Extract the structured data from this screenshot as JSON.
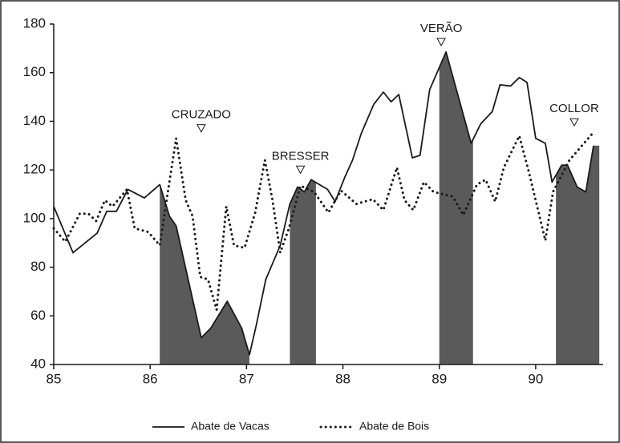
{
  "chart_data": {
    "type": "line",
    "xlim": [
      85,
      90.7
    ],
    "ylim": [
      40,
      180
    ],
    "xticks": [
      85,
      86,
      87,
      88,
      89,
      90
    ],
    "yticks": [
      40,
      60,
      80,
      100,
      120,
      140,
      160,
      180
    ],
    "shaded_periods": [
      [
        86.1,
        87.03
      ],
      [
        87.45,
        87.72
      ],
      [
        89.0,
        89.35
      ],
      [
        90.21,
        90.66
      ]
    ],
    "shade_color": "#5a5a5a",
    "annotations": [
      {
        "label": "CRUZADO",
        "x": 86.53
      },
      {
        "label": "BRESSER",
        "x": 87.56
      },
      {
        "label": "VERÃO",
        "x": 89.02
      },
      {
        "label": "COLLOR",
        "x": 90.4
      }
    ],
    "series": [
      {
        "name": "Abate de Vacas",
        "color": "#1a1a1a",
        "dash": "solid",
        "x": [
          85.0,
          85.2,
          85.45,
          85.55,
          85.65,
          85.77,
          85.94,
          86.1,
          86.2,
          86.27,
          86.53,
          86.63,
          86.8,
          86.95,
          87.03,
          87.1,
          87.2,
          87.35,
          87.45,
          87.53,
          87.6,
          87.67,
          87.84,
          87.92,
          88.02,
          88.1,
          88.19,
          88.32,
          88.42,
          88.5,
          88.58,
          88.72,
          88.8,
          88.9,
          89.07,
          89.33,
          89.43,
          89.55,
          89.63,
          89.74,
          89.83,
          89.91,
          90.0,
          90.1,
          90.17,
          90.27,
          90.33,
          90.43,
          90.52,
          90.6
        ],
        "values": [
          105,
          86,
          94,
          103,
          103,
          112,
          108.5,
          114,
          101,
          97,
          51,
          55,
          66,
          55,
          44,
          56,
          75,
          89,
          106,
          113,
          111,
          116,
          112,
          107,
          117,
          124,
          135,
          147,
          152,
          148,
          151,
          125,
          126,
          153,
          168.5,
          131,
          139,
          144,
          155,
          154.5,
          158,
          156,
          133,
          131,
          115,
          122,
          122,
          113,
          111,
          130
        ]
      },
      {
        "name": "Abate de Bois",
        "color": "#1a1a1a",
        "dash": "dotted",
        "x": [
          85.0,
          85.12,
          85.27,
          85.36,
          85.44,
          85.53,
          85.61,
          85.76,
          85.84,
          85.98,
          86.1,
          86.19,
          86.27,
          86.37,
          86.44,
          86.52,
          86.6,
          86.69,
          86.79,
          86.87,
          86.98,
          87.09,
          87.19,
          87.27,
          87.35,
          87.44,
          87.56,
          87.7,
          87.85,
          87.98,
          88.14,
          88.31,
          88.42,
          88.56,
          88.64,
          88.73,
          88.84,
          88.94,
          89.14,
          89.25,
          89.39,
          89.48,
          89.58,
          89.67,
          89.83,
          89.93,
          90.1,
          90.18,
          90.35,
          90.6
        ],
        "values": [
          96,
          90.5,
          102,
          102,
          99,
          107.5,
          105,
          112,
          96,
          94.5,
          89,
          112.5,
          133,
          107.5,
          101,
          76,
          75,
          62.5,
          105,
          89,
          88,
          102.5,
          124,
          107.5,
          86,
          96,
          113.5,
          111,
          102.5,
          111.5,
          106,
          108,
          103.5,
          121,
          107.5,
          103.5,
          115,
          111,
          109,
          101.5,
          114,
          116,
          107,
          121,
          134,
          119,
          91,
          111,
          124,
          135.5
        ]
      }
    ]
  }
}
